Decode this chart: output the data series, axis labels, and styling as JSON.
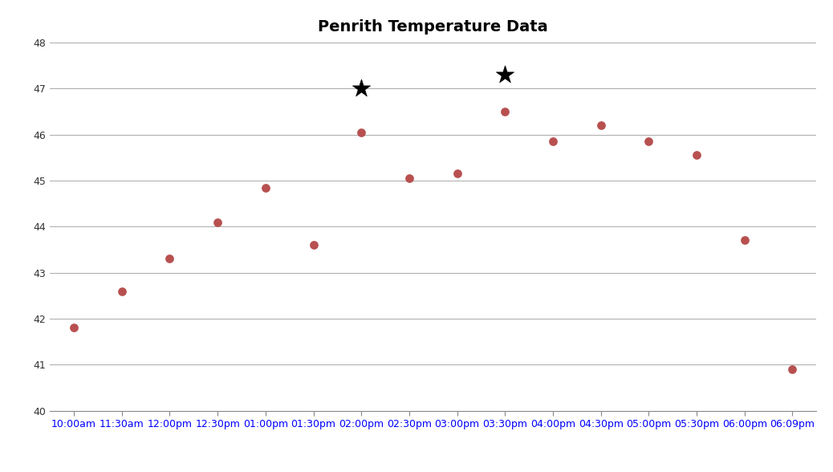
{
  "title": "Penrith Temperature Data",
  "x_labels": [
    "10:00am",
    "11:30am",
    "12:00pm",
    "12:30pm",
    "01:00pm",
    "01:30pm",
    "02:00pm",
    "02:30pm",
    "03:00pm",
    "03:30pm",
    "04:00pm",
    "04:30pm",
    "05:00pm",
    "05:30pm",
    "06:00pm",
    "06:09pm"
  ],
  "x_values": [
    0,
    1,
    2,
    3,
    4,
    5,
    6,
    7,
    8,
    9,
    10,
    11,
    12,
    13,
    14,
    15
  ],
  "temperatures": [
    41.8,
    42.6,
    43.3,
    44.1,
    44.85,
    43.6,
    46.05,
    45.05,
    45.15,
    46.5,
    45.85,
    46.2,
    45.85,
    45.55,
    43.7,
    40.9
  ],
  "star_indices": [
    6,
    9
  ],
  "star_values": [
    47.0,
    47.3
  ],
  "dot_color": "#b85050",
  "star_color": "#000000",
  "ylim": [
    40,
    48
  ],
  "yticks": [
    40,
    41,
    42,
    43,
    44,
    45,
    46,
    47,
    48
  ],
  "background_color": "#ffffff",
  "grid_color": "#aaaaaa",
  "title_fontsize": 14,
  "tick_label_color": "#0000ff",
  "ytick_label_color": "#333333",
  "bottom_spine_color": "#888888"
}
